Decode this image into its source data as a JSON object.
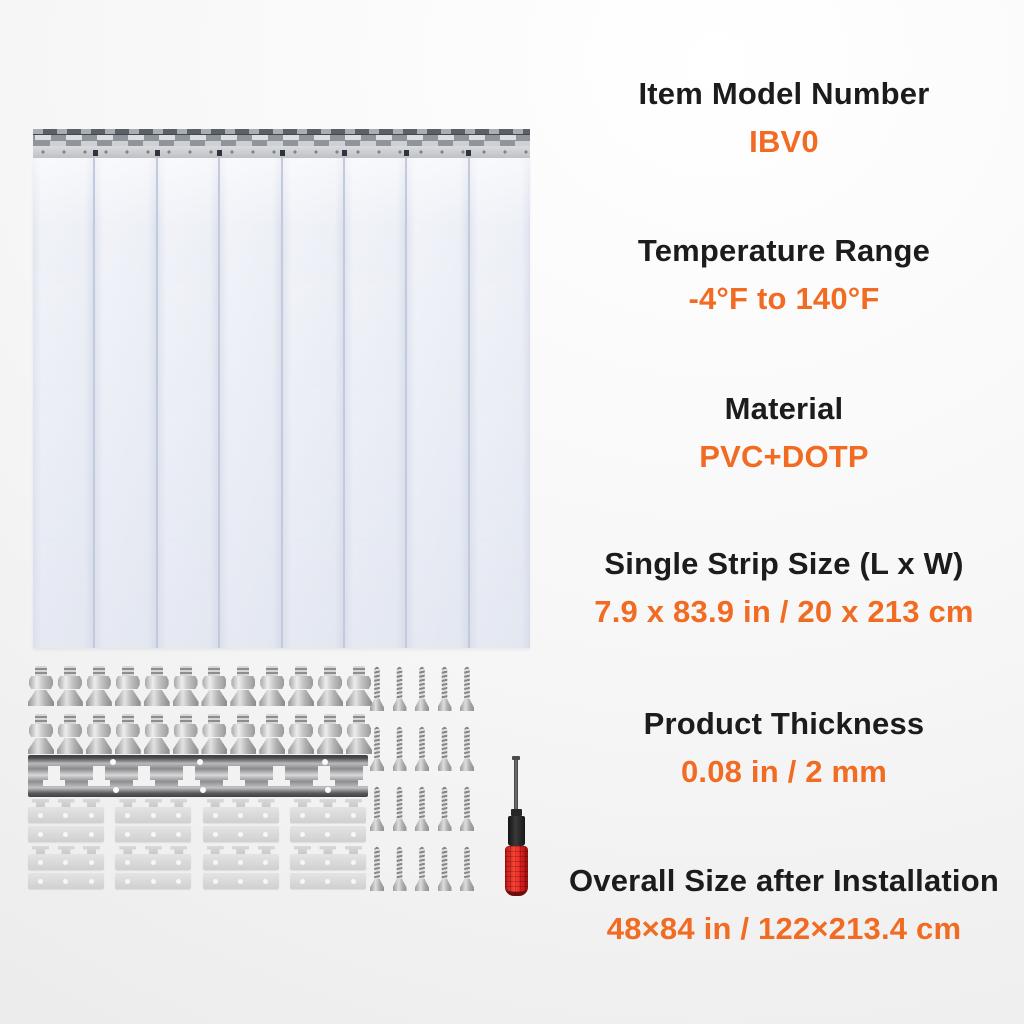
{
  "colors": {
    "accent_orange": "#f26b22",
    "text_black": "#1c1c1c"
  },
  "specs": [
    {
      "label": "Item Model Number",
      "value": "IBV0"
    },
    {
      "label": "Temperature Range",
      "value": "-4°F to 140°F"
    },
    {
      "label": "Material",
      "value": "PVC+DOTP"
    },
    {
      "label": "Single Strip Size (L x W)",
      "value": "7.9 x 83.9 in / 20 x 213 cm"
    },
    {
      "label": "Product Thickness",
      "value": "0.08 in / 2 mm"
    },
    {
      "label": "Overall Size after Installation",
      "value": "48×84 in / 122×213.4 cm"
    }
  ],
  "hardware": {
    "strip_count": 8,
    "seam_count": 7,
    "bolt_rows": 2,
    "bolts_per_row": 12,
    "screw_rows": 4,
    "screws_per_row": 5,
    "rail_slot_count": 8,
    "rail_hole_count": 6,
    "plate_rows": 2,
    "plate_groups_per_row": 4,
    "icons": [
      "curtain-strips",
      "hanging-rail",
      "bolt",
      "screw",
      "mounting-rail",
      "mounting-plate",
      "screwdriver"
    ]
  }
}
